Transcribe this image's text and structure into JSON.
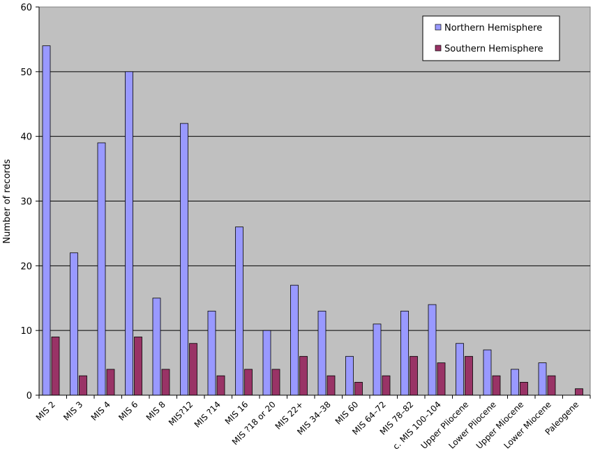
{
  "chart_data": {
    "type": "bar",
    "ylabel": "Number of records",
    "xlabel": "",
    "ylim": [
      0,
      60
    ],
    "yticks": [
      0,
      10,
      20,
      30,
      40,
      50,
      60
    ],
    "grid": true,
    "legend_position": "top-right",
    "background": "#c0c0c0",
    "categories": [
      "MIS 2",
      "MIS 3",
      "MIS 4",
      "MIS 6",
      "MIS 8",
      "MIS?12",
      "MIS ?14",
      "MIS 16",
      "MIS ?18 or 20",
      "MIS 22+",
      "MIS 34–38",
      "MIS 60",
      "MIS 64–72",
      "MIS 78–82",
      "c. MIS 100–104",
      "Upper Pliocene",
      "Lower Pliocene",
      "Upper Miocene",
      "Lower Miocene",
      "Paleogene"
    ],
    "series": [
      {
        "name": "Northern Hemisphere",
        "color": "#9999ff",
        "values": [
          54,
          22,
          39,
          50,
          15,
          42,
          13,
          26,
          10,
          17,
          13,
          6,
          11,
          13,
          14,
          8,
          7,
          4,
          5,
          0
        ]
      },
      {
        "name": "Southern Hemisphere",
        "color": "#993366",
        "values": [
          9,
          3,
          4,
          9,
          4,
          8,
          3,
          4,
          4,
          6,
          3,
          2,
          3,
          6,
          5,
          6,
          3,
          2,
          3,
          1
        ]
      }
    ]
  }
}
